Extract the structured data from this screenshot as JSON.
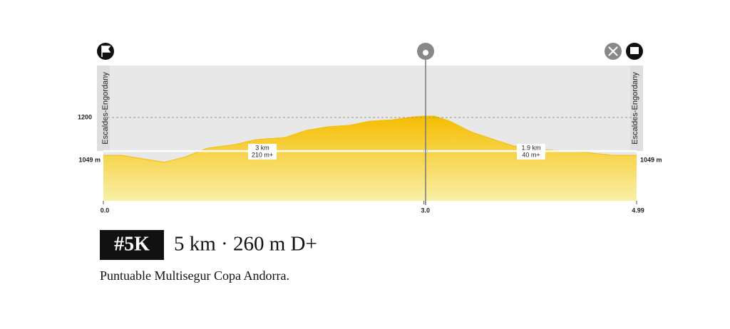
{
  "chart_data": {
    "type": "area",
    "place_labels": [
      "Escaldes-Engordany",
      "Escaldes-Engordany"
    ],
    "x": [
      0,
      0.17,
      0.37,
      0.57,
      0.77,
      0.97,
      1.23,
      1.43,
      1.7,
      1.9,
      2.1,
      2.3,
      2.5,
      2.7,
      2.9,
      3.0,
      3.1,
      3.24,
      3.44,
      3.64,
      3.84,
      4.1,
      4.37,
      4.57,
      4.77,
      4.99
    ],
    "values": [
      1049,
      1049,
      1035,
      1021,
      1043,
      1077,
      1092,
      1112,
      1120,
      1149,
      1163,
      1169,
      1186,
      1191,
      1203,
      1206,
      1206,
      1186,
      1143,
      1114,
      1086,
      1072,
      1066,
      1058,
      1049,
      1049
    ],
    "color": "#f5bd00",
    "xlim": [
      0,
      4.99
    ],
    "xticks": [
      {
        "value": 0,
        "label": "0.0"
      },
      {
        "value": 3,
        "label": "3.0"
      },
      4.99
    ],
    "ylim": [
      867,
      1408
    ],
    "yticks": [
      {
        "value": 1049,
        "label": "1049 m"
      },
      1200
    ],
    "annotations": [
      "3 km",
      "210 m+",
      "1.9 km",
      "40 m+"
    ],
    "badge": "#5K",
    "title": "5 km · 260 m D+",
    "subtitle": "Puntuable Multisegur Copa Andorra."
  }
}
